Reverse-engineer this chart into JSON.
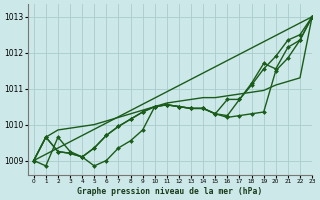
{
  "title": "Graphe pression niveau de la mer (hPa)",
  "background_color": "#cce8e8",
  "grid_color": "#aacccc",
  "line_color": "#1a5c1a",
  "xlim": [
    -0.5,
    23
  ],
  "ylim": [
    1008.6,
    1013.35
  ],
  "yticks": [
    1009,
    1010,
    1011,
    1012,
    1013
  ],
  "xticks": [
    0,
    1,
    2,
    3,
    4,
    5,
    6,
    7,
    8,
    9,
    10,
    11,
    12,
    13,
    14,
    15,
    16,
    17,
    18,
    19,
    20,
    21,
    22,
    23
  ],
  "series": [
    {
      "x": [
        0,
        1,
        2,
        3,
        4,
        5,
        6,
        7,
        8,
        9,
        10,
        11,
        12,
        13,
        14,
        15,
        16,
        17,
        18,
        19,
        20,
        21,
        22,
        23
      ],
      "y": [
        1009.0,
        1009.65,
        1009.85,
        1009.9,
        1009.95,
        1010.0,
        1010.1,
        1010.2,
        1010.3,
        1010.4,
        1010.5,
        1010.6,
        1010.65,
        1010.7,
        1010.75,
        1010.75,
        1010.8,
        1010.85,
        1010.9,
        1010.95,
        1011.1,
        1011.2,
        1011.3,
        1013.0
      ],
      "lw": 1.0,
      "marker": false
    },
    {
      "x": [
        0,
        1,
        2,
        3,
        4,
        5,
        6,
        7,
        8,
        9,
        10,
        11,
        12,
        13,
        14,
        15,
        16,
        17,
        18,
        19,
        20,
        21,
        22,
        23
      ],
      "y": [
        1009.0,
        1008.85,
        1009.65,
        1009.25,
        1009.1,
        1008.85,
        1009.0,
        1009.35,
        1009.55,
        1009.85,
        1010.5,
        1010.55,
        1010.5,
        1010.45,
        1010.45,
        1010.3,
        1010.25,
        1010.7,
        1011.15,
        1011.7,
        1011.55,
        1012.15,
        1012.35,
        1013.0
      ],
      "lw": 1.0,
      "marker": true
    },
    {
      "x": [
        0,
        1,
        2,
        3,
        4,
        5,
        6,
        7,
        8,
        9,
        10,
        11,
        12,
        13,
        14,
        15,
        16,
        17,
        18,
        19,
        20,
        21,
        22,
        23
      ],
      "y": [
        1009.0,
        1009.65,
        1009.25,
        1009.2,
        1009.1,
        1009.35,
        1009.7,
        1009.95,
        1010.15,
        1010.35,
        1010.5,
        1010.55,
        1010.5,
        1010.45,
        1010.45,
        1010.3,
        1010.2,
        1010.25,
        1010.3,
        1010.35,
        1011.5,
        1011.85,
        1012.35,
        1013.0
      ],
      "lw": 1.0,
      "marker": true
    },
    {
      "x": [
        0,
        1,
        2,
        3,
        4,
        5,
        6,
        7,
        8,
        9,
        10,
        11,
        12,
        13,
        14,
        15,
        16,
        17,
        18,
        19,
        20,
        21,
        22,
        23
      ],
      "y": [
        1009.0,
        1009.65,
        1009.25,
        1009.2,
        1009.1,
        1009.35,
        1009.7,
        1009.95,
        1010.15,
        1010.35,
        1010.5,
        1010.55,
        1010.5,
        1010.45,
        1010.45,
        1010.3,
        1010.7,
        1010.7,
        1011.1,
        1011.55,
        1011.9,
        1012.35,
        1012.5,
        1013.0
      ],
      "lw": 1.0,
      "marker": true
    },
    {
      "x": [
        0,
        23
      ],
      "y": [
        1009.0,
        1013.0
      ],
      "lw": 1.0,
      "marker": false
    }
  ]
}
